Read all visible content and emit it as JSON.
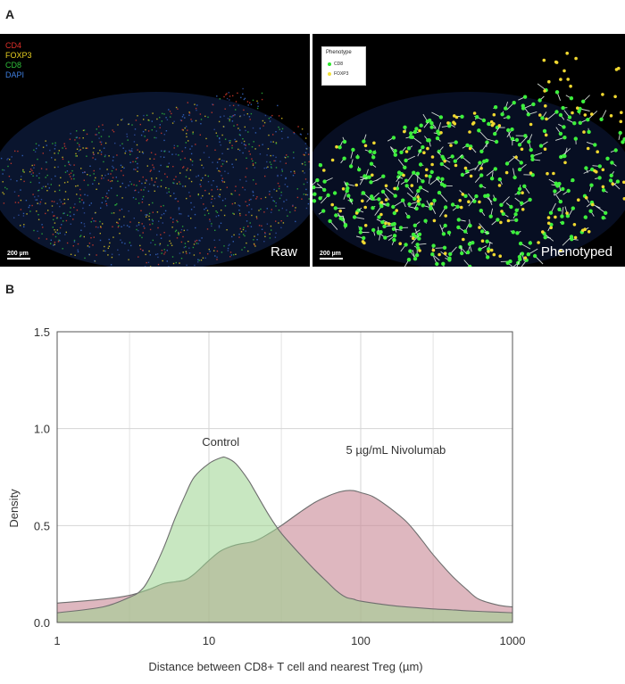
{
  "panel_a": {
    "letter": "A",
    "raw": {
      "channels": [
        {
          "name": "CD4",
          "color": "#e0302a"
        },
        {
          "name": "FOXP3",
          "color": "#e8d020"
        },
        {
          "name": "CD8",
          "color": "#2fbf3a"
        },
        {
          "name": "DAPI",
          "color": "#3f7fe0"
        }
      ],
      "scale_bar": "200 µm",
      "label": "Raw"
    },
    "phenotyped": {
      "legend_title": "Phenotype",
      "legend_items": [
        {
          "name": "CD8",
          "color": "#2ee62e"
        },
        {
          "name": "FOXP3",
          "color": "#f2e23a"
        }
      ],
      "scale_bar": "200 µm",
      "label": "Phenotyped"
    }
  },
  "panel_b": {
    "letter": "B"
  },
  "chart_data": {
    "type": "area",
    "title": "",
    "xlabel": "Distance between CD8+ T cell and nearest Treg (µm)",
    "ylabel": "Density",
    "x_scale": "log10",
    "xlim": [
      1,
      1000
    ],
    "ylim": [
      0,
      1.5
    ],
    "x_ticks": [
      "1",
      "10",
      "100",
      "1000"
    ],
    "y_ticks": [
      "0.0",
      "0.5",
      "1.0",
      "1.5"
    ],
    "grid": true,
    "series": [
      {
        "name": "5 µg/mL Nivolumab",
        "color": "#c98a98",
        "x": [
          1,
          2,
          3,
          4,
          5,
          6,
          7,
          8,
          10,
          12,
          15,
          20,
          25,
          30,
          40,
          50,
          60,
          70,
          80,
          90,
          100,
          120,
          150,
          200,
          250,
          300,
          400,
          500,
          600,
          800,
          1000
        ],
        "y": [
          0.1,
          0.12,
          0.14,
          0.17,
          0.2,
          0.21,
          0.22,
          0.25,
          0.32,
          0.37,
          0.4,
          0.42,
          0.46,
          0.5,
          0.57,
          0.62,
          0.65,
          0.67,
          0.68,
          0.68,
          0.67,
          0.65,
          0.6,
          0.52,
          0.43,
          0.35,
          0.24,
          0.17,
          0.12,
          0.09,
          0.08
        ]
      },
      {
        "name": "Control",
        "color": "#9bd48e",
        "x": [
          1,
          2,
          3,
          3.5,
          4,
          5,
          6,
          7,
          8,
          10,
          12,
          13,
          15,
          18,
          20,
          25,
          30,
          40,
          50,
          60,
          70,
          80,
          90,
          100,
          150,
          200,
          300,
          400,
          500,
          700,
          1000
        ],
        "y": [
          0.05,
          0.08,
          0.13,
          0.16,
          0.22,
          0.38,
          0.54,
          0.66,
          0.75,
          0.82,
          0.85,
          0.85,
          0.82,
          0.74,
          0.68,
          0.55,
          0.46,
          0.35,
          0.27,
          0.21,
          0.16,
          0.13,
          0.12,
          0.11,
          0.09,
          0.08,
          0.07,
          0.065,
          0.06,
          0.055,
          0.05
        ]
      }
    ],
    "annotations": [
      {
        "text": "Control",
        "x": 9,
        "y": 0.91
      },
      {
        "text": "5 µg/mL Nivolumab",
        "x": 80,
        "y": 0.87
      }
    ]
  }
}
